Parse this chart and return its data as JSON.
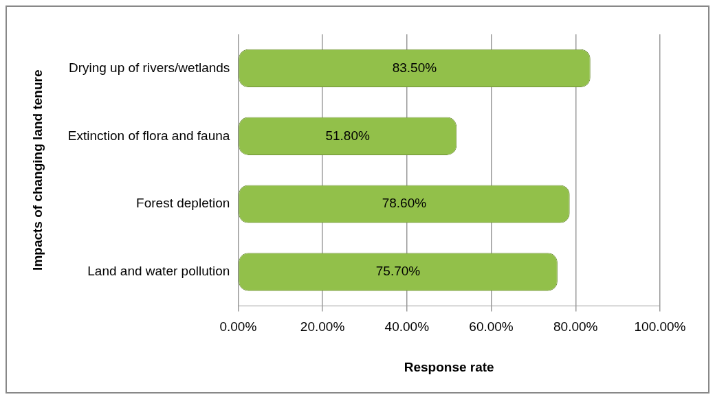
{
  "chart_data": {
    "type": "bar",
    "orientation": "horizontal",
    "xlabel": "Response rate",
    "ylabel": "Impacts of changing land tenure",
    "categories": [
      "Drying up of rivers/wetlands",
      "Extinction of flora and fauna",
      "Forest depletion",
      "Land and water pollution"
    ],
    "values": [
      83.5,
      51.8,
      78.6,
      75.7
    ],
    "value_labels": [
      "83.50%",
      "51.80%",
      "78.60%",
      "75.70%"
    ],
    "color": "#92c04a",
    "xlim": [
      0,
      100
    ],
    "xticks": [
      {
        "value": 0,
        "label": "0.00%"
      },
      {
        "value": 20,
        "label": "20.00%"
      },
      {
        "value": 40,
        "label": "40.00%"
      },
      {
        "value": 60,
        "label": "60.00%"
      },
      {
        "value": 80,
        "label": "80.00%"
      },
      {
        "value": 100,
        "label": "100.00%"
      }
    ],
    "grid": "x",
    "legend": false
  }
}
